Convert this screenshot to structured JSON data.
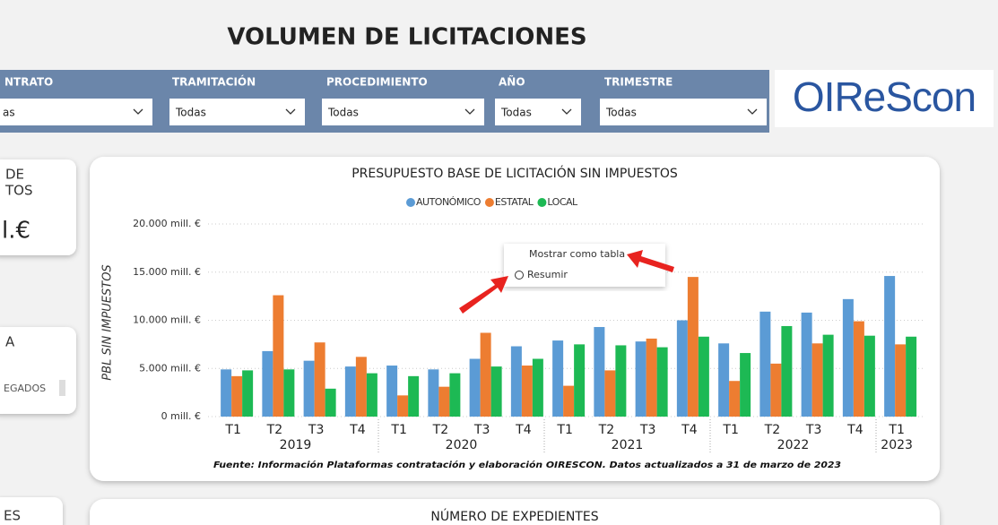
{
  "header": {
    "title": "VOLUMEN DE LICITACIONES",
    "logo": "OIReScon"
  },
  "filters": [
    {
      "label": "NTRATO",
      "value": "as"
    },
    {
      "label": "TRAMITACIÓN",
      "value": "Todas"
    },
    {
      "label": "PROCEDIMIENTO",
      "value": "Todas"
    },
    {
      "label": "AÑO",
      "value": "Todas"
    },
    {
      "label": "TRIMESTRE",
      "value": "Todas"
    }
  ],
  "cards": [
    {
      "lines": [
        "DE",
        "TOS"
      ],
      "value": "l.€"
    },
    {
      "lines": [
        "A"
      ],
      "value": "EGADOS"
    },
    {
      "lines": [
        "ES"
      ]
    }
  ],
  "context_menu": [
    "Mostrar como tabla",
    "Resumir"
  ],
  "bottom_title": "NÚMERO DE EXPEDIENTES",
  "chart_data": {
    "type": "bar",
    "title": "PRESUPUESTO BASE DE LICITACIÓN SIN IMPUESTOS",
    "y_label": "PBL SIN IMPUESTOS",
    "source": "Fuente: Información Plataformas contratación y elaboración OIRESCON. Datos actualizados a 31 de marzo de 2023",
    "categories": [
      "T1",
      "T2",
      "T3",
      "T4",
      "T1",
      "T2",
      "T3",
      "T4",
      "T1",
      "T2",
      "T3",
      "T4",
      "T1",
      "T2",
      "T3",
      "T4",
      "T1"
    ],
    "years": [
      "2019",
      "2020",
      "2021",
      "2022",
      "2023"
    ],
    "series": [
      {
        "name": "AUTONÓMICO",
        "color": "#5b9bd5",
        "values": [
          4900,
          6800,
          5800,
          5200,
          5300,
          4900,
          6000,
          7300,
          7900,
          9300,
          7800,
          10000,
          7600,
          10900,
          10800,
          12200,
          14600
        ]
      },
      {
        "name": "ESTATAL",
        "color": "#ed7d31",
        "values": [
          4200,
          12600,
          7700,
          6200,
          2200,
          3100,
          8700,
          5300,
          3200,
          4800,
          8100,
          14500,
          3700,
          5500,
          7600,
          9900,
          7500
        ]
      },
      {
        "name": "LOCAL",
        "color": "#1db954",
        "values": [
          4800,
          4900,
          2900,
          4500,
          4200,
          4500,
          5200,
          6000,
          7500,
          7400,
          7200,
          8300,
          6600,
          9400,
          8500,
          8400,
          8300
        ]
      }
    ],
    "ylim": [
      0,
      20000
    ],
    "yticks": [
      {
        "value": 0,
        "label": "0 mill. €"
      },
      {
        "value": 5000,
        "label": "5.000 mill. €"
      },
      {
        "value": 10000,
        "label": "10.000 mill. €"
      },
      {
        "value": 15000,
        "label": "15.000 mill. €"
      },
      {
        "value": 20000,
        "label": "20.000 mill. €"
      }
    ],
    "grid": true,
    "legend": "top"
  }
}
